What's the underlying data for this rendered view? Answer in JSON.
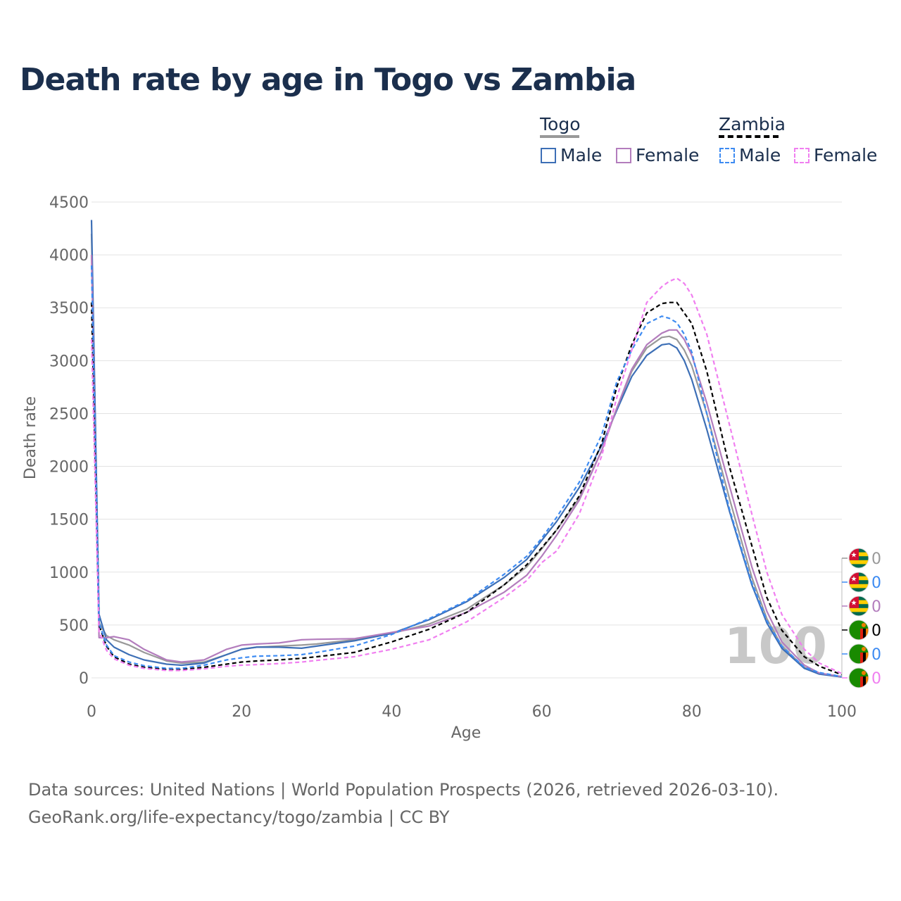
{
  "title": "Death rate by age in Togo vs Zambia",
  "legend": {
    "groups": [
      {
        "name": "Togo",
        "underline_color": "#999999",
        "dashed": false,
        "items": [
          {
            "label": "Male",
            "color": "#3d6fb6"
          },
          {
            "label": "Female",
            "color": "#b37dbd"
          }
        ]
      },
      {
        "name": "Zambia",
        "underline_color": "#000000",
        "dashed": true,
        "items": [
          {
            "label": "Male",
            "color": "#3d8bf2"
          },
          {
            "label": "Female",
            "color": "#f07ff0"
          }
        ]
      }
    ]
  },
  "year_watermark": "100",
  "end_labels": [
    {
      "country": "Togo",
      "text": "0",
      "color": "#999999"
    },
    {
      "country": "Togo",
      "text": "0",
      "color": "#3d8bf2"
    },
    {
      "country": "Togo",
      "text": "0",
      "color": "#b37dbd"
    },
    {
      "country": "Zambia",
      "text": "0",
      "color": "#000000"
    },
    {
      "country": "Zambia",
      "text": "0",
      "color": "#3d8bf2"
    },
    {
      "country": "Zambia",
      "text": "0",
      "color": "#f07ff0"
    }
  ],
  "source": {
    "line1": "Data sources: United Nations | World Population Prospects (2026, retrieved 2026-03-10).",
    "line2": "GeoRank.org/life-expectancy/togo/zambia | CC BY"
  },
  "chart_data": {
    "type": "line",
    "xlabel": "Age",
    "ylabel": "Death rate",
    "xlim": [
      0,
      100
    ],
    "ylim": [
      0,
      4500
    ],
    "xticks": [
      0,
      20,
      40,
      60,
      80,
      100
    ],
    "yticks": [
      0,
      500,
      1000,
      1500,
      2000,
      2500,
      3000,
      3500,
      4000,
      4500
    ],
    "x": [
      0,
      1,
      2,
      3,
      5,
      7,
      10,
      12,
      15,
      18,
      20,
      22,
      25,
      28,
      30,
      35,
      40,
      45,
      50,
      55,
      58,
      60,
      62,
      65,
      68,
      70,
      72,
      74,
      76,
      77,
      78,
      79,
      80,
      82,
      85,
      88,
      90,
      92,
      95,
      97,
      100
    ],
    "series": [
      {
        "name": "Togo (both)",
        "color": "#999999",
        "dashed": false,
        "values": [
          4200,
          520,
          400,
          360,
          310,
          240,
          160,
          140,
          150,
          220,
          270,
          290,
          300,
          310,
          320,
          360,
          420,
          510,
          650,
          880,
          1050,
          1220,
          1400,
          1700,
          2150,
          2550,
          2900,
          3120,
          3220,
          3230,
          3200,
          3100,
          2950,
          2500,
          1700,
          950,
          560,
          300,
          100,
          40,
          10
        ]
      },
      {
        "name": "Togo Male",
        "color": "#3d6fb6",
        "dashed": false,
        "values": [
          4330,
          600,
          360,
          290,
          220,
          170,
          130,
          120,
          140,
          220,
          270,
          290,
          290,
          280,
          300,
          350,
          420,
          550,
          720,
          950,
          1120,
          1300,
          1480,
          1800,
          2200,
          2530,
          2850,
          3050,
          3150,
          3160,
          3120,
          3000,
          2820,
          2350,
          1580,
          880,
          520,
          280,
          90,
          35,
          8
        ]
      },
      {
        "name": "Togo Female",
        "color": "#b37dbd",
        "dashed": false,
        "values": [
          4000,
          380,
          380,
          390,
          360,
          270,
          170,
          150,
          170,
          270,
          310,
          320,
          330,
          360,
          365,
          370,
          430,
          490,
          620,
          810,
          970,
          1150,
          1350,
          1680,
          2150,
          2550,
          2920,
          3150,
          3260,
          3290,
          3290,
          3200,
          3050,
          2600,
          1820,
          1050,
          630,
          340,
          120,
          45,
          12
        ]
      },
      {
        "name": "Zambia (both)",
        "color": "#000000",
        "dashed": true,
        "values": [
          3550,
          500,
          300,
          200,
          130,
          100,
          80,
          80,
          100,
          130,
          150,
          160,
          170,
          185,
          200,
          240,
          340,
          460,
          620,
          880,
          1070,
          1230,
          1400,
          1720,
          2220,
          2750,
          3150,
          3450,
          3540,
          3550,
          3550,
          3450,
          3350,
          2900,
          2000,
          1250,
          760,
          450,
          200,
          110,
          30
        ]
      },
      {
        "name": "Zambia Male",
        "color": "#3d8bf2",
        "dashed": true,
        "values": [
          3900,
          520,
          310,
          210,
          150,
          115,
          90,
          90,
          120,
          170,
          190,
          205,
          210,
          220,
          240,
          300,
          410,
          560,
          730,
          980,
          1150,
          1320,
          1520,
          1850,
          2300,
          2800,
          3100,
          3350,
          3420,
          3400,
          3360,
          3250,
          3080,
          2500,
          1600,
          900,
          540,
          300,
          100,
          50,
          12
        ]
      },
      {
        "name": "Zambia Female",
        "color": "#f07ff0",
        "dashed": true,
        "values": [
          3200,
          440,
          260,
          180,
          120,
          90,
          70,
          70,
          85,
          110,
          120,
          125,
          135,
          150,
          165,
          200,
          270,
          360,
          530,
          760,
          920,
          1090,
          1200,
          1550,
          2100,
          2650,
          3100,
          3550,
          3700,
          3750,
          3780,
          3730,
          3620,
          3250,
          2400,
          1550,
          1000,
          600,
          270,
          140,
          40
        ]
      }
    ]
  }
}
